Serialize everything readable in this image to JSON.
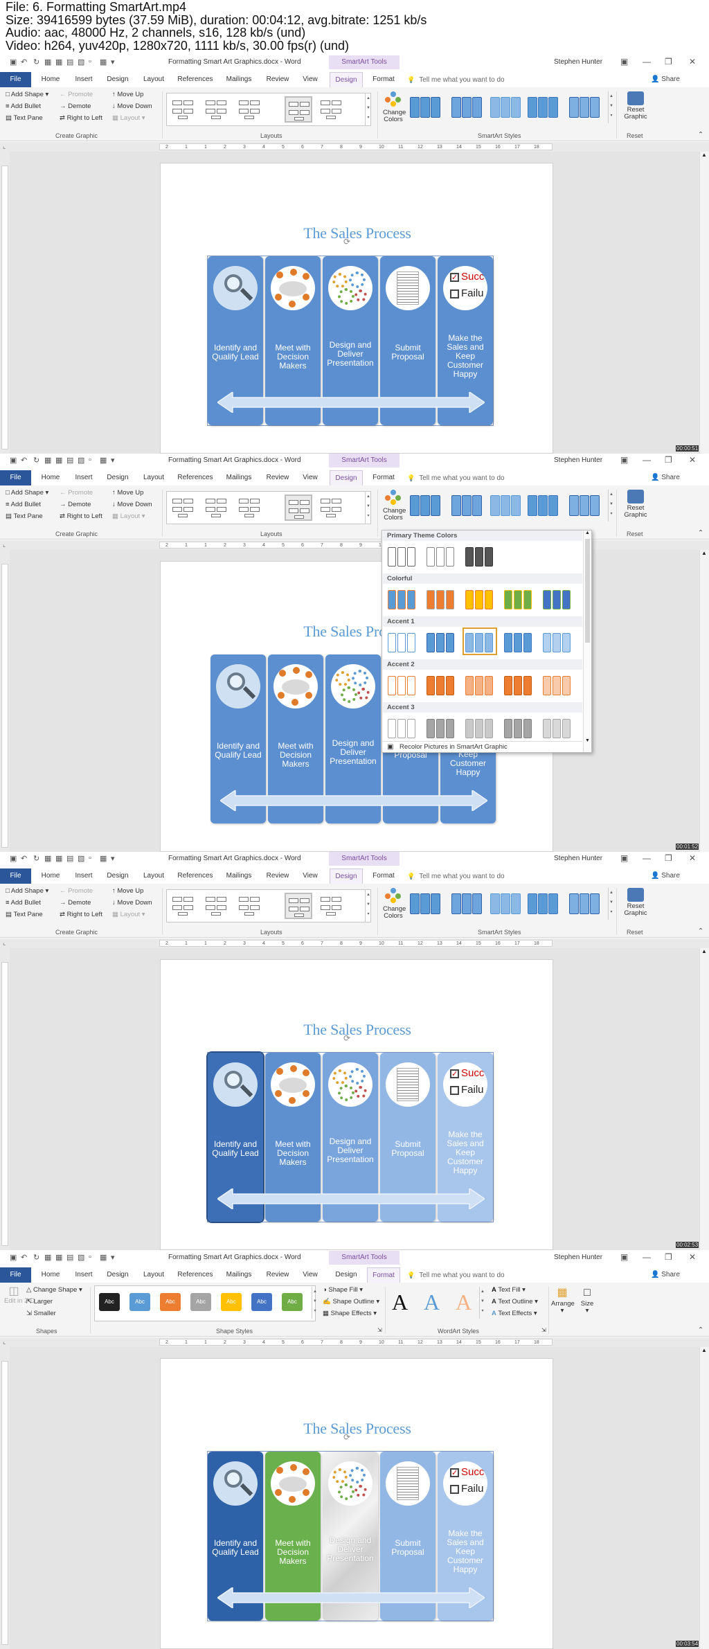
{
  "media_info": {
    "line1": "File: 6. Formatting SmartArt.mp4",
    "line2": "Size: 39416599 bytes (37.59 MiB), duration: 00:04:12, avg.bitrate: 1251 kb/s",
    "line3": "Audio: aac, 48000 Hz, 2 channels, s16, 128 kb/s (und)",
    "line4": "Video: h264, yuv420p, 1280x720, 1111 kb/s, 30.00 fps(r) (und)"
  },
  "window": {
    "doc_title": "Formatting Smart Art Graphics.docx - Word",
    "contextual": "SmartArt Tools",
    "user": "Stephen Hunter",
    "share": "Share",
    "tell": "Tell me what you want to do"
  },
  "tabs": {
    "file": "File",
    "home": "Home",
    "insert": "Insert",
    "design": "Design",
    "layout": "Layout",
    "references": "References",
    "mailings": "Mailings",
    "review": "Review",
    "view": "View",
    "sa_design": "Design",
    "format": "Format"
  },
  "design_ribbon": {
    "add_shape": "Add Shape",
    "add_bullet": "Add Bullet",
    "text_pane": "Text Pane",
    "promote": "Promote",
    "demote": "Demote",
    "rtl": "Right to Left",
    "move_up": "Move Up",
    "move_down": "Move Down",
    "layout": "Layout",
    "create_graphic": "Create Graphic",
    "layouts": "Layouts",
    "change_colors": "Change Colors",
    "smartart_styles": "SmartArt Styles",
    "reset_graphic": "Reset Graphic",
    "reset": "Reset"
  },
  "format_ribbon": {
    "edit_in_2d": "Edit in 2-D",
    "change_shape": "Change Shape",
    "larger": "Larger",
    "smaller": "Smaller",
    "shapes": "Shapes",
    "abc": "Abc",
    "shape_styles": "Shape Styles",
    "shape_fill": "Shape Fill",
    "shape_outline": "Shape Outline",
    "shape_effects": "Shape Effects",
    "wordart_a": "A",
    "wordart_styles": "WordArt Styles",
    "text_fill": "Text Fill",
    "text_outline": "Text Outline",
    "text_effects": "Text Effects",
    "arrange": "Arrange",
    "size": "Size"
  },
  "ruler": {
    "ticks": [
      "2",
      "1",
      "1",
      "2",
      "3",
      "4",
      "5",
      "6",
      "7",
      "8",
      "9",
      "10",
      "11",
      "12",
      "13",
      "14",
      "15",
      "16",
      "17",
      "18"
    ]
  },
  "smartart": {
    "title": "The Sales Process",
    "steps": [
      "Identify and Qualify Lead",
      "Meet with Decision Makers",
      "Design and Deliver Presentation",
      "Submit Proposal",
      "Make the Sales and Keep Customer Happy"
    ],
    "success": "Succ",
    "failure": "Failu"
  },
  "gallery": {
    "primary": "Primary Theme Colors",
    "colorful": "Colorful",
    "accent1": "Accent 1",
    "accent2": "Accent 2",
    "accent3": "Accent 3",
    "recolor": "Recolor Pictures in SmartArt Graphic"
  },
  "colors": {
    "accent": "#5b9bd5",
    "dark_blue": "#2e62a8",
    "green": "#6ab04c",
    "word_blue": "#2b579a",
    "smartart_purple": "#7b4fa0"
  },
  "timestamps": [
    "00:00:51",
    "00:01:52",
    "00:02:53",
    "00:03:54"
  ]
}
